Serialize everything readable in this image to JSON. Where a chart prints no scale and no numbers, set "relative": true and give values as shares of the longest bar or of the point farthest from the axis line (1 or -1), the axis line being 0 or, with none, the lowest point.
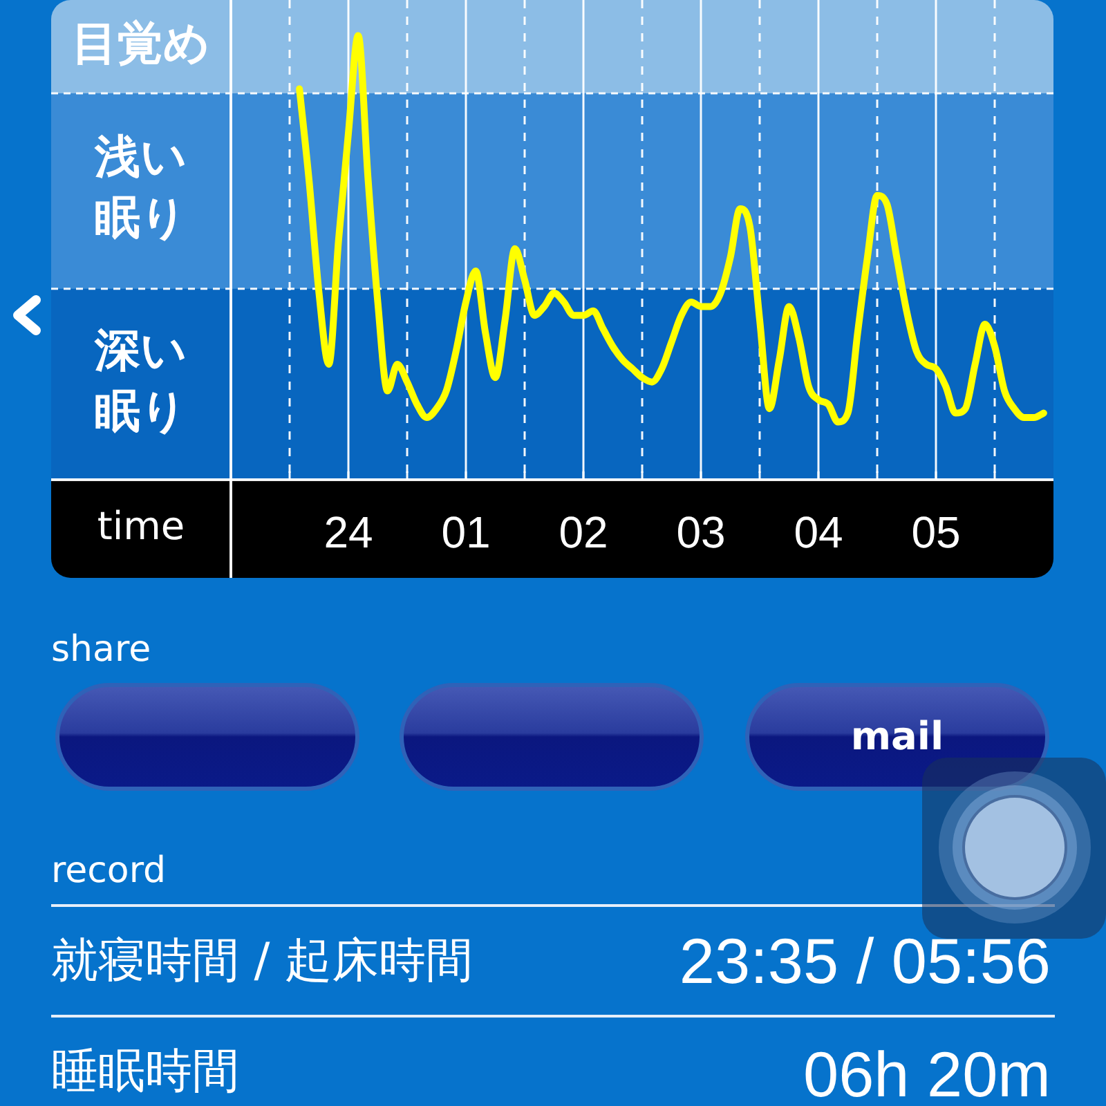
{
  "chart_data": {
    "type": "line",
    "xlabel": "time",
    "relative": true,
    "color": "#ffff00",
    "categories": [
      null,
      null,
      null,
      null,
      null,
      null,
      null,
      null,
      null,
      null,
      null,
      null,
      "24",
      null,
      null,
      null,
      null,
      null,
      null,
      null,
      null,
      null,
      null,
      null,
      "01",
      null,
      null,
      null,
      null,
      null,
      null,
      null,
      null,
      null,
      null,
      null,
      "02",
      null,
      null,
      null,
      null,
      null,
      null,
      null,
      null,
      null,
      null,
      null,
      "03",
      null,
      null,
      null,
      null,
      null,
      null,
      null,
      null,
      null,
      null,
      null,
      "04",
      null,
      null,
      null,
      null,
      null,
      null,
      null,
      null,
      null,
      null,
      null,
      "05",
      null,
      null,
      null,
      null,
      null,
      null,
      null,
      null,
      null,
      null,
      null,
      null
    ],
    "values": [
      null,
      null,
      null,
      null,
      null,
      null,
      null,
      0.88,
      0.67,
      0.42,
      0.26,
      0.54,
      0.78,
      1.0,
      0.68,
      0.4,
      0.2,
      0.26,
      0.22,
      0.17,
      0.14,
      0.16,
      0.2,
      0.29,
      0.4,
      0.47,
      0.33,
      0.23,
      0.36,
      0.52,
      0.45,
      0.37,
      0.39,
      0.42,
      0.4,
      0.37,
      0.37,
      0.38,
      0.34,
      0.3,
      0.27,
      0.25,
      0.23,
      0.22,
      0.25,
      0.31,
      0.37,
      0.4,
      0.39,
      0.39,
      0.42,
      0.5,
      0.61,
      0.57,
      0.36,
      0.16,
      0.27,
      0.39,
      0.32,
      0.21,
      0.18,
      0.17,
      0.13,
      0.15,
      0.33,
      0.5,
      0.64,
      0.62,
      0.5,
      0.38,
      0.29,
      0.26,
      0.25,
      0.21,
      0.15,
      0.16,
      0.26,
      0.35,
      0.3,
      0.2,
      0.16,
      0.14,
      0.14,
      0.15,
      null
    ],
    "grid": "x",
    "bands": [
      {
        "axis": "y",
        "from": 0,
        "to": 0.43,
        "label": "深い眠り",
        "color": "#0866bf"
      },
      {
        "axis": "y",
        "from": 0.43,
        "to": 0.87,
        "label": "浅い眠り",
        "color": "#3a8bd6"
      },
      {
        "axis": "y",
        "from": 0.87,
        "to": 1.08,
        "label": "目覚め",
        "color": "#8cbde6"
      }
    ],
    "annotations": [
      "share",
      "mail",
      "record",
      "就寝時間 / 起床時間",
      "23:35 / 05:56",
      "睡眠時間",
      "06h 20m"
    ]
  }
}
